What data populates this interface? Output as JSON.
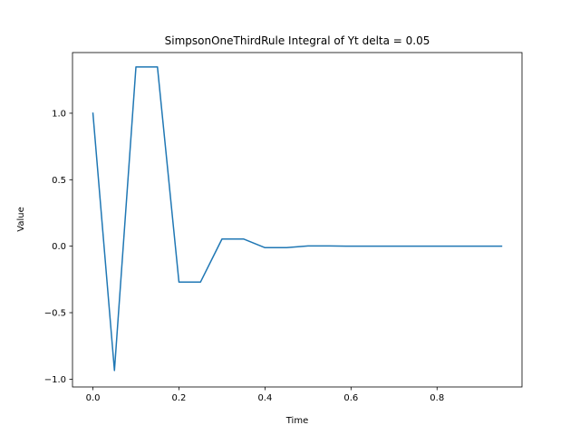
{
  "chart_data": {
    "type": "line",
    "title": "SimpsonOneThirdRule Integral of Yt delta = 0.05",
    "xlabel": "Time",
    "ylabel": "Value",
    "xlim": [
      -0.0475,
      0.9975
    ],
    "ylim": [
      -1.0587,
      1.4562
    ],
    "grid": false,
    "line_color": "#1f77b4",
    "x_ticks": [
      0.0,
      0.2,
      0.4,
      0.6,
      0.8
    ],
    "x_tick_labels": [
      "0.0",
      "0.2",
      "0.4",
      "0.6",
      "0.8"
    ],
    "y_ticks": [
      -1.0,
      -0.5,
      0.0,
      0.5,
      1.0
    ],
    "y_tick_labels": [
      "−1.0",
      "−0.5",
      "0.0",
      "0.5",
      "1.0"
    ],
    "series": [
      {
        "x": [
          0.0,
          0.05,
          0.1,
          0.15,
          0.2,
          0.25,
          0.3,
          0.35,
          0.4,
          0.45,
          0.5,
          0.55,
          0.6,
          0.65,
          0.7,
          0.75,
          0.8,
          0.85,
          0.9,
          0.95
        ],
        "values": [
          1.0,
          -0.935,
          1.348,
          1.348,
          -0.27,
          -0.27,
          0.054,
          0.054,
          -0.011,
          -0.011,
          0.002,
          0.002,
          0.0,
          0.0,
          0.0,
          0.0,
          0.0,
          0.0,
          0.0,
          0.0
        ]
      }
    ]
  }
}
